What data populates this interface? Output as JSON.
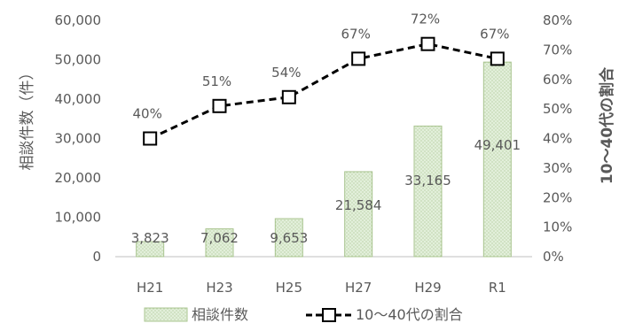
{
  "chart_data": {
    "type": "bar",
    "categories": [
      "H21",
      "H23",
      "H25",
      "H27",
      "H29",
      "R1"
    ],
    "series": [
      {
        "name": "相談件数",
        "type": "bar",
        "axis": "left",
        "values": [
          3823,
          7062,
          9653,
          21584,
          33165,
          49401
        ],
        "labels": [
          "3,823",
          "7,062",
          "9,653",
          "21,584",
          "33,165",
          "49,401"
        ],
        "color": "#e2efda"
      },
      {
        "name": "10～40代の割合",
        "type": "line",
        "axis": "right",
        "values": [
          40,
          51,
          54,
          67,
          72,
          67
        ],
        "labels": [
          "40%",
          "51%",
          "54%",
          "67%",
          "72%",
          "67%"
        ],
        "color": "#000000"
      }
    ],
    "ylabel": "相談件数（件）",
    "y2label": "10～40代の割合",
    "ylim": [
      0,
      60000
    ],
    "y2lim": [
      0,
      80
    ],
    "yticks": [
      "0",
      "10,000",
      "20,000",
      "30,000",
      "40,000",
      "50,000",
      "60,000"
    ],
    "y2ticks": [
      "0%",
      "10%",
      "20%",
      "30%",
      "40%",
      "50%",
      "60%",
      "70%",
      "80%"
    ],
    "legend": "bottom",
    "grid": false
  }
}
